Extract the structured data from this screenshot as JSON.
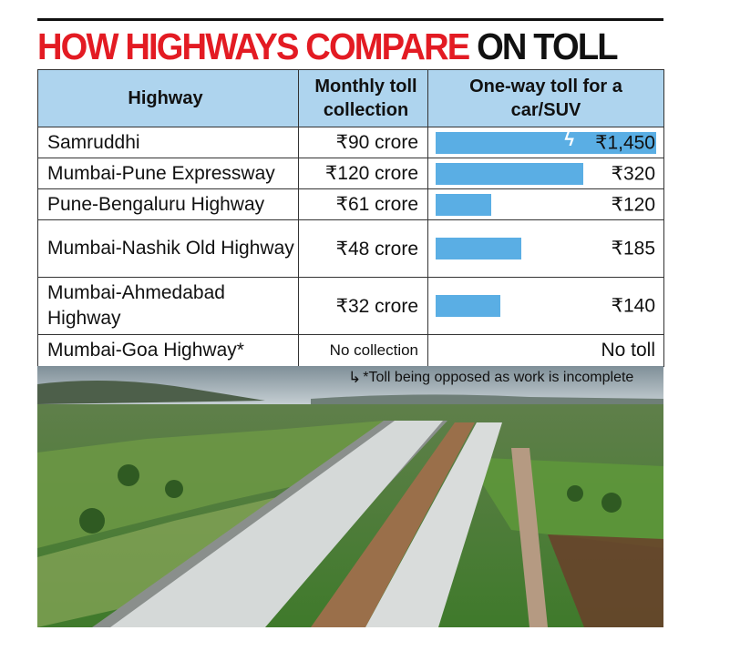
{
  "title": {
    "part_red": "HOW HIGHWAYS COMPARE",
    "part_black": "ON TOLL"
  },
  "table": {
    "headers": {
      "highway": "Highway",
      "monthly": "Monthly toll collection",
      "oneway": "One-way toll for a car/SUV"
    },
    "rows": [
      {
        "highway": "Samruddhi",
        "monthly": "₹90 crore",
        "toll_label": "₹1,450"
      },
      {
        "highway": "Mumbai-Pune Expressway",
        "monthly": "₹120 crore",
        "toll_label": "₹320"
      },
      {
        "highway": "Pune-Bengaluru Highway",
        "monthly": "₹61 crore",
        "toll_label": "₹120"
      },
      {
        "highway": "Mumbai-Nashik Old Highway",
        "monthly": "₹48 crore",
        "toll_label": "₹185"
      },
      {
        "highway": "Mumbai-Ahmedabad Highway",
        "monthly": "₹32 crore",
        "toll_label": "₹140"
      },
      {
        "highway": "Mumbai-Goa Highway*",
        "monthly": "No collection",
        "toll_label": "No toll"
      }
    ]
  },
  "footnote": "*Toll being opposed as work is incomplete",
  "colors": {
    "headline_red": "#e31b23",
    "header_fill": "#aed4ee",
    "bar_fill": "#5aaee4"
  },
  "chart_data": {
    "type": "bar",
    "categories": [
      "Samruddhi",
      "Mumbai-Pune Expressway",
      "Pune-Bengaluru Highway",
      "Mumbai-Nashik Old Highway",
      "Mumbai-Ahmedabad Highway",
      "Mumbai-Goa Highway*"
    ],
    "values": [
      1450,
      320,
      120,
      185,
      140,
      0
    ],
    "unit": "₹",
    "axis_break_on": "Samruddhi"
  }
}
